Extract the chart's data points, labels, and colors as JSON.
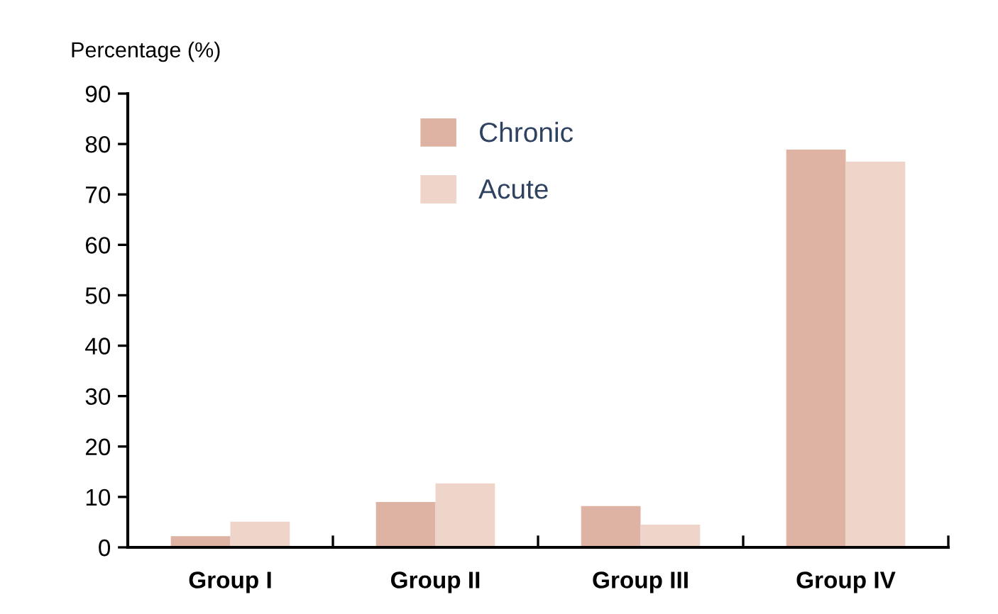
{
  "chart_data": {
    "type": "bar",
    "ylabel": "Percentage (%)",
    "categories": [
      "Group I",
      "Group II",
      "Group III",
      "Group IV"
    ],
    "series": [
      {
        "name": "Chronic",
        "color": "#dfb3a3",
        "values": [
          2.2,
          9.0,
          8.2,
          78.9
        ]
      },
      {
        "name": "Acute",
        "color": "#efd4c9",
        "values": [
          5.1,
          12.7,
          4.5,
          76.5
        ]
      }
    ],
    "ylim": [
      0,
      90
    ],
    "yticks": [
      0,
      10,
      20,
      30,
      40,
      50,
      60,
      70,
      80,
      90
    ],
    "grid": false,
    "legend": "top"
  }
}
